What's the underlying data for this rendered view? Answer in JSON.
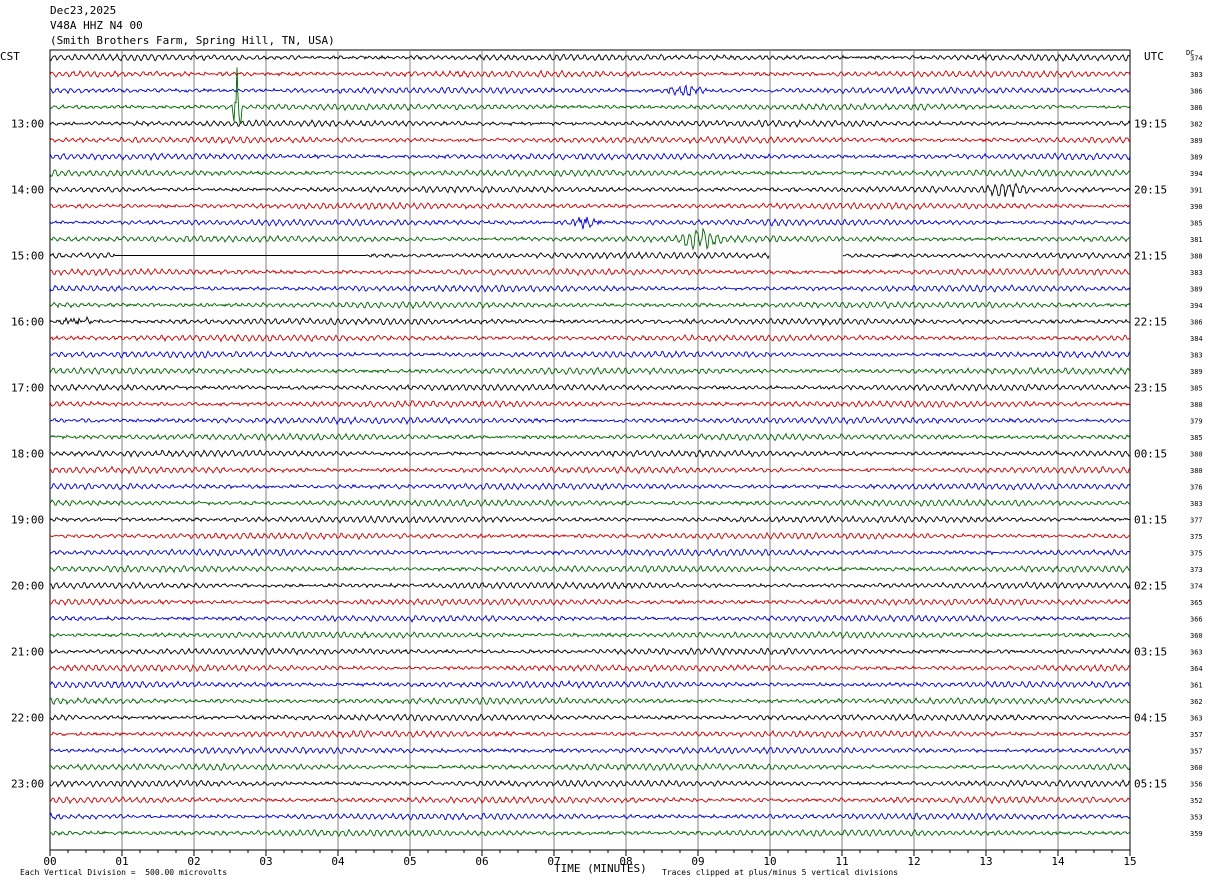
{
  "header": {
    "date": "Dec23,2025",
    "channel": "V48A HHZ N4 00",
    "location": "(Smith Brothers Farm, Spring Hill, TN, USA)"
  },
  "left_tz": "CST",
  "right_tz": "UTC",
  "dc_label": "DC",
  "footer": {
    "scale": "Each Vertical Division =  500.00 microvolts",
    "clip": "Traces clipped at plus/minus 5 vertical divisions"
  },
  "colors": {
    "black": "#000000",
    "red": "#cc0000",
    "blue": "#0000cc",
    "green": "#006600",
    "grid": "#808080"
  },
  "chart_data": {
    "type": "line",
    "title": "Dec23,2025 V48A HHZ N4 00 (Smith Brothers Farm, Spring Hill, TN, USA)",
    "xlabel": "TIME (MINUTES)",
    "ylabel": "",
    "xlim": [
      0,
      15
    ],
    "x_ticks": [
      "00",
      "01",
      "02",
      "03",
      "04",
      "05",
      "06",
      "07",
      "08",
      "09",
      "10",
      "11",
      "12",
      "13",
      "14",
      "15"
    ],
    "traces_per_hour": 4,
    "trace_minutes": 15,
    "trace_colors": [
      "black",
      "red",
      "blue",
      "green"
    ],
    "left_hour_labels": [
      "13:00",
      "14:00",
      "15:00",
      "16:00",
      "17:00",
      "18:00",
      "19:00",
      "20:00",
      "21:00",
      "22:00",
      "23:00"
    ],
    "right_hour_labels": [
      "19:15",
      "20:15",
      "21:15",
      "22:15",
      "23:15",
      "00:15",
      "01:15",
      "02:15",
      "03:15",
      "04:15",
      "05:15"
    ],
    "dc_offsets": [
      374,
      383,
      386,
      386,
      382,
      389,
      389,
      394,
      391,
      390,
      385,
      381,
      388,
      383,
      389,
      394,
      386,
      384,
      383,
      389,
      385,
      380,
      379,
      385,
      380,
      380,
      376,
      383,
      377,
      375,
      375,
      373,
      374,
      365,
      366,
      360,
      363,
      364,
      361,
      362,
      363,
      357,
      357,
      360,
      356,
      352,
      353,
      359
    ],
    "events": [
      {
        "trace": 3,
        "minute": 2.6,
        "type": "spike",
        "amplitude": 5
      },
      {
        "trace": 2,
        "minute": 8.8,
        "type": "burst",
        "amplitude": 1.2
      },
      {
        "trace": 8,
        "minute": 13.3,
        "type": "burst",
        "amplitude": 1
      },
      {
        "trace": 10,
        "minute": 7.4,
        "type": "burst",
        "amplitude": 1.2
      },
      {
        "trace": 11,
        "minute": 9.0,
        "type": "burst",
        "amplitude": 1.5
      },
      {
        "trace": 16,
        "minute": 0.4,
        "type": "burst",
        "amplitude": 1
      }
    ],
    "gaps": [
      {
        "trace": 12,
        "from_minute": 0.9,
        "to_minute": 4.4,
        "type": "flat"
      },
      {
        "trace": 12,
        "from_minute": 10.0,
        "to_minute": 11.0,
        "type": "missing"
      }
    ]
  }
}
